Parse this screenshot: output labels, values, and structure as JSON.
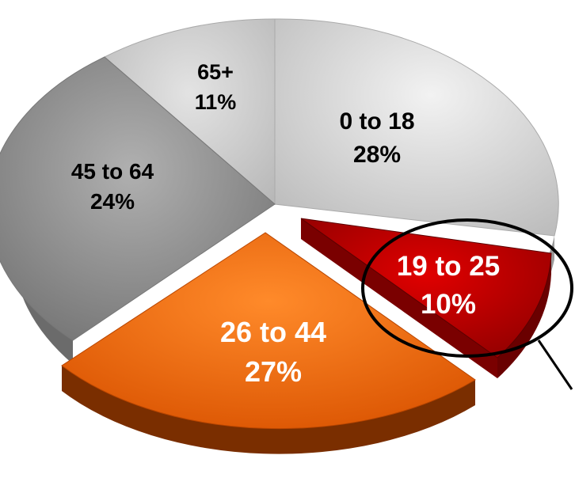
{
  "chart_data": {
    "type": "pie",
    "categories": [
      "0 to 18",
      "19 to 25",
      "26 to 44",
      "45 to 64",
      "65+"
    ],
    "values": [
      28,
      10,
      27,
      24,
      11
    ],
    "value_labels": [
      "28%",
      "10%",
      "27%",
      "24%",
      "11%"
    ],
    "exploded": [
      false,
      true,
      true,
      false,
      false
    ],
    "highlighted": "19 to 25",
    "colors": [
      "#d6d6d6",
      "#b30000",
      "#f26b0f",
      "#8c8c8c",
      "#cfcfcf"
    ],
    "label_colors": [
      "#000000",
      "#ffffff",
      "#ffffff",
      "#000000",
      "#000000"
    ],
    "title": "",
    "legend": "none"
  }
}
